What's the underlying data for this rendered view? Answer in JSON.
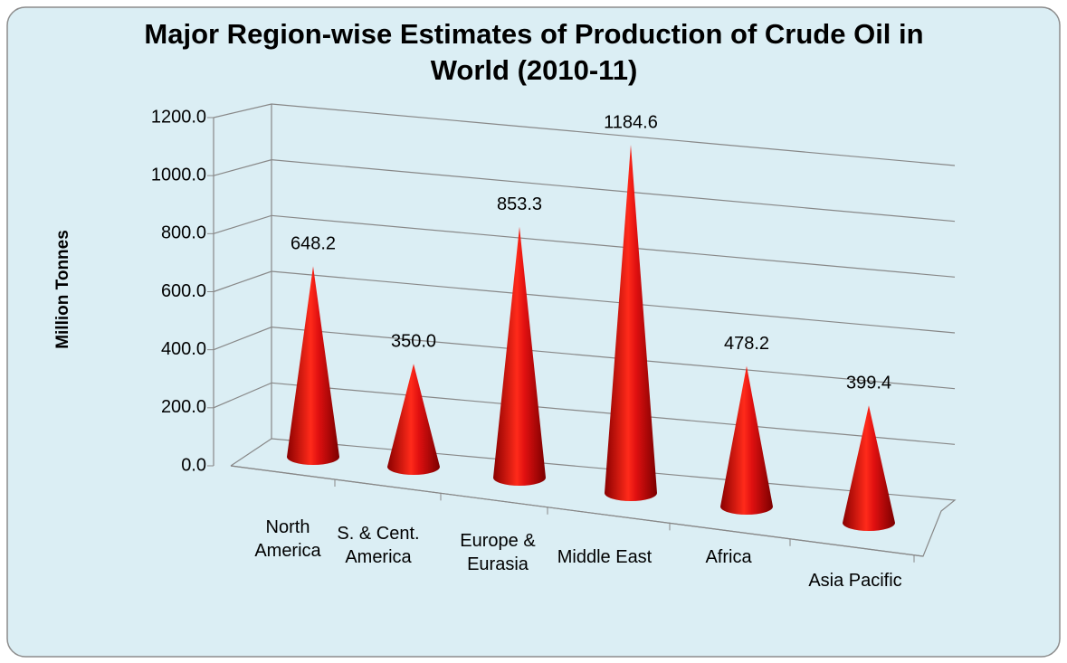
{
  "chart_data": {
    "type": "cone3d",
    "title": "Major Region-wise Estimates of Production of Crude Oil in World (2010-11)",
    "y_label": "Million Tonnes",
    "categories": [
      "North America",
      "S. & Cent. America",
      "Europe & Eurasia",
      "Middle East",
      "Africa",
      "Asia Pacific"
    ],
    "values": [
      648.2,
      350.0,
      853.3,
      1184.6,
      478.2,
      399.4
    ],
    "value_labels": [
      "648.2",
      "350.0",
      "853.3",
      "1184.6",
      "478.2",
      "399.4"
    ],
    "color": "#e01010",
    "ylim": [
      0,
      1200
    ],
    "yticks": [
      {
        "value": 0,
        "label": "0.0"
      },
      {
        "value": 200,
        "label": "200.0"
      },
      {
        "value": 400,
        "label": "400.0"
      },
      {
        "value": 600,
        "label": "600.0"
      },
      {
        "value": 800,
        "label": "800.0"
      },
      {
        "value": 1000,
        "label": "1000.0"
      },
      {
        "value": 1200,
        "label": "1200.0"
      }
    ],
    "grid": true
  }
}
